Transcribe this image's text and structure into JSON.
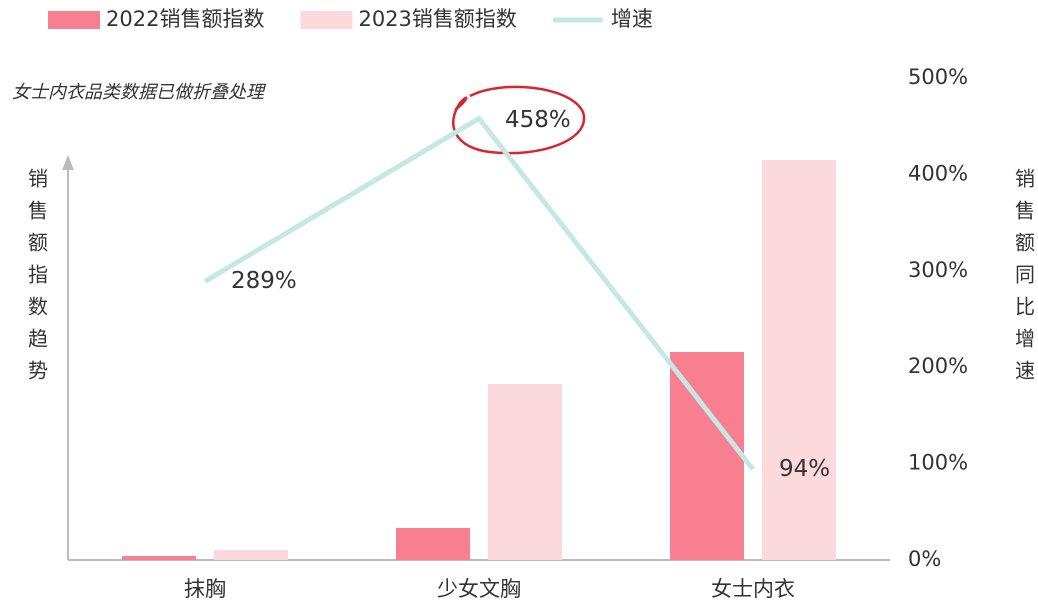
{
  "chart_data": {
    "type": "bar",
    "annotation": "女士内衣品类数据已做折叠处理",
    "ylabel": "销售额指数趋势",
    "y2label": "销售额同比增速",
    "categories": [
      "抹胸",
      "少女文胸",
      "女士内衣"
    ],
    "series": [
      {
        "name": "2022销售额指数",
        "color": "#f77f8f",
        "values": [
          1,
          8,
          52
        ]
      },
      {
        "name": "2023销售额指数",
        "color": "#fcd9dd",
        "values": [
          2.5,
          44,
          100
        ]
      },
      {
        "name": "增速",
        "type": "line",
        "axis": "y2",
        "color": "#c6e8e4",
        "values": [
          289,
          458,
          94
        ],
        "value_labels": [
          "289%",
          "458%",
          "94%"
        ]
      }
    ],
    "ylim": [
      0,
      100
    ],
    "y2lim": [
      0,
      500
    ],
    "y2ticks": [
      {
        "value": 0,
        "label": "0%"
      },
      {
        "value": 100,
        "label": "100%"
      },
      {
        "value": 200,
        "label": "200%"
      },
      {
        "value": 300,
        "label": "300%"
      },
      {
        "value": 400,
        "label": "400%"
      },
      {
        "value": 500,
        "label": "500%"
      }
    ]
  }
}
